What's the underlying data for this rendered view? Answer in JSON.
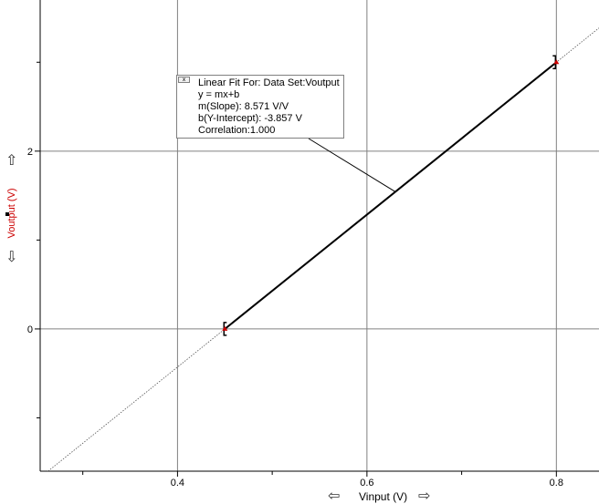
{
  "chart_data": {
    "type": "scatter",
    "xlabel": "Vinput (V)",
    "ylabel": "Voutput (V)",
    "xlim": [
      0.255,
      0.845
    ],
    "ylim": [
      -1.6,
      3.7
    ],
    "x_ticks_major": [
      0.4,
      0.6,
      0.8
    ],
    "x_ticks_minor": [
      0.3,
      0.5,
      0.7
    ],
    "x_tick_labels": [
      "0.4",
      "0.6",
      "0.8"
    ],
    "y_ticks_major": [
      0,
      2
    ],
    "y_ticks_minor": [
      -1,
      1,
      3
    ],
    "y_tick_labels": [
      "0",
      "2"
    ],
    "grid": true,
    "series": [
      {
        "name": "Voutput",
        "x": [
          0.45,
          0.8
        ],
        "y": [
          0.0,
          3.0
        ]
      }
    ],
    "fit": {
      "slope": 8.571,
      "intercept": -3.857,
      "range": [
        0.45,
        0.8
      ]
    },
    "annotation": {
      "lines": [
        "Linear Fit For:  Data Set:Voutput",
        "y = mx+b",
        "m(Slope): 8.571 V/V",
        "b(Y-Intercept): -3.857 V",
        "Correlation:1.000"
      ],
      "close_label": "x"
    }
  },
  "colors": {
    "grid": "#808080",
    "data": "#000000",
    "marker": "#cc0000",
    "ylabel": "#cc0000"
  },
  "controls": {
    "scroll_left": "⇦",
    "scroll_right": "⇨",
    "scroll_up": "⇧",
    "scroll_down": "⇩"
  }
}
